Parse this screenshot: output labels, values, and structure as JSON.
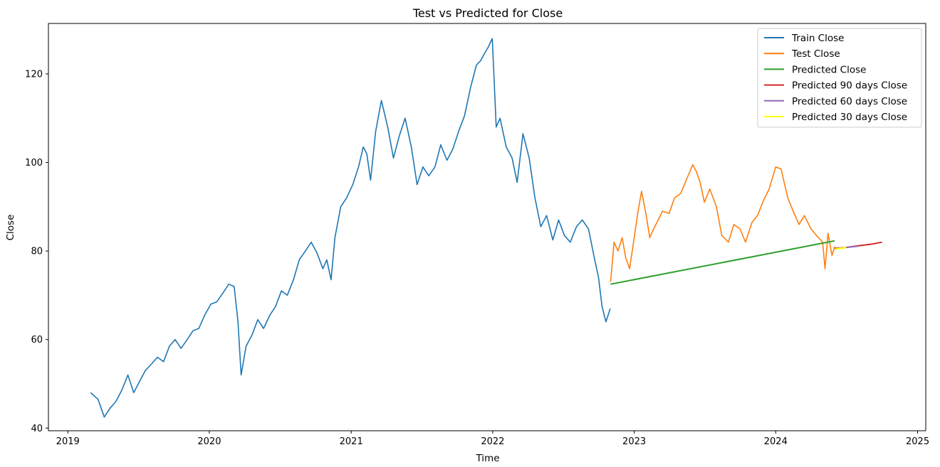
{
  "chart_data": {
    "type": "line",
    "title": "Test vs Predicted for Close",
    "xlabel": "Time",
    "ylabel": "Close",
    "xlim": [
      "2018-11-12",
      "2025-01-22"
    ],
    "ylim": [
      39.4,
      131.4
    ],
    "x_ticks": [
      "2019",
      "2020",
      "2021",
      "2022",
      "2023",
      "2024",
      "2025"
    ],
    "y_ticks": [
      40,
      60,
      80,
      100,
      120
    ],
    "grid": false,
    "legend_position": "top-right",
    "series": [
      {
        "name": "Train Close",
        "color": "#1f77b4",
        "x": [
          "2019-03-01",
          "2019-03-20",
          "2019-04-05",
          "2019-04-20",
          "2019-05-05",
          "2019-05-20",
          "2019-06-05",
          "2019-06-20",
          "2019-07-05",
          "2019-07-20",
          "2019-08-05",
          "2019-08-20",
          "2019-09-05",
          "2019-09-20",
          "2019-10-05",
          "2019-10-20",
          "2019-11-05",
          "2019-11-20",
          "2019-12-05",
          "2019-12-20",
          "2020-01-05",
          "2020-01-20",
          "2020-02-05",
          "2020-02-20",
          "2020-03-05",
          "2020-03-15",
          "2020-03-23",
          "2020-04-05",
          "2020-04-20",
          "2020-05-05",
          "2020-05-20",
          "2020-06-05",
          "2020-06-20",
          "2020-07-05",
          "2020-07-20",
          "2020-08-05",
          "2020-08-20",
          "2020-09-05",
          "2020-09-20",
          "2020-10-05",
          "2020-10-20",
          "2020-10-30",
          "2020-11-10",
          "2020-11-20",
          "2020-12-05",
          "2020-12-20",
          "2021-01-05",
          "2021-01-20",
          "2021-02-01",
          "2021-02-10",
          "2021-02-20",
          "2021-03-05",
          "2021-03-20",
          "2021-04-05",
          "2021-04-20",
          "2021-05-05",
          "2021-05-20",
          "2021-06-05",
          "2021-06-20",
          "2021-07-05",
          "2021-07-20",
          "2021-08-05",
          "2021-08-20",
          "2021-09-05",
          "2021-09-20",
          "2021-10-05",
          "2021-10-20",
          "2021-11-05",
          "2021-11-20",
          "2021-12-01",
          "2021-12-10",
          "2021-12-20",
          "2021-12-31",
          "2022-01-10",
          "2022-01-20",
          "2022-02-05",
          "2022-02-20",
          "2022-03-05",
          "2022-03-20",
          "2022-04-05",
          "2022-04-20",
          "2022-05-05",
          "2022-05-20",
          "2022-06-05",
          "2022-06-20",
          "2022-07-05",
          "2022-07-20",
          "2022-08-05",
          "2022-08-20",
          "2022-09-05",
          "2022-09-20",
          "2022-10-01",
          "2022-10-10",
          "2022-10-20",
          "2022-10-31"
        ],
        "values": [
          48.0,
          46.5,
          42.5,
          44.5,
          46.0,
          48.5,
          52.0,
          48.0,
          50.5,
          53.0,
          54.5,
          56.0,
          55.0,
          58.5,
          60.0,
          58.0,
          60.0,
          62.0,
          62.5,
          65.5,
          68.0,
          68.5,
          70.5,
          72.5,
          72.0,
          64.0,
          52.0,
          58.5,
          61.0,
          64.5,
          62.5,
          65.5,
          67.5,
          71.0,
          70.0,
          73.5,
          78.0,
          80.0,
          82.0,
          79.5,
          76.0,
          78.0,
          73.5,
          83.0,
          90.0,
          92.0,
          95.0,
          99.0,
          103.5,
          102.0,
          96.0,
          107.0,
          114.0,
          108.0,
          101.0,
          106.0,
          110.0,
          103.5,
          95.0,
          99.0,
          97.0,
          99.0,
          104.0,
          100.5,
          103.0,
          107.0,
          110.5,
          117.0,
          122.0,
          123.0,
          124.5,
          126.0,
          128.0,
          108.0,
          110.0,
          103.5,
          101.0,
          95.5,
          106.5,
          101.0,
          92.0,
          85.5,
          88.0,
          82.5,
          87.0,
          83.5,
          82.0,
          85.5,
          87.0,
          85.0,
          78.5,
          74.0,
          67.5,
          64.0,
          67.0
        ]
      },
      {
        "name": "Test Close",
        "color": "#ff7f0e",
        "x": [
          "2022-11-01",
          "2022-11-10",
          "2022-11-20",
          "2022-12-01",
          "2022-12-10",
          "2022-12-20",
          "2023-01-01",
          "2023-01-10",
          "2023-01-20",
          "2023-02-01",
          "2023-02-10",
          "2023-02-20",
          "2023-03-01",
          "2023-03-15",
          "2023-04-01",
          "2023-04-15",
          "2023-05-01",
          "2023-05-15",
          "2023-06-01",
          "2023-06-10",
          "2023-06-20",
          "2023-07-01",
          "2023-07-15",
          "2023-08-01",
          "2023-08-15",
          "2023-09-01",
          "2023-09-15",
          "2023-10-01",
          "2023-10-15",
          "2023-11-01",
          "2023-11-15",
          "2023-12-01",
          "2023-12-15",
          "2024-01-01",
          "2024-01-15",
          "2024-02-01",
          "2024-02-15",
          "2024-03-01",
          "2024-03-15",
          "2024-04-01",
          "2024-04-15",
          "2024-05-01",
          "2024-05-07",
          "2024-05-15",
          "2024-05-25",
          "2024-06-01"
        ],
        "values": [
          73.0,
          82.0,
          80.0,
          83.0,
          78.5,
          76.0,
          83.0,
          88.5,
          93.5,
          88.0,
          83.0,
          85.0,
          86.5,
          89.0,
          88.5,
          92.0,
          93.0,
          96.0,
          99.5,
          98.0,
          95.5,
          91.0,
          94.0,
          90.0,
          83.5,
          82.0,
          86.0,
          85.0,
          82.0,
          86.5,
          88.0,
          91.5,
          94.0,
          99.0,
          98.5,
          92.0,
          89.0,
          86.0,
          88.0,
          85.0,
          83.5,
          82.0,
          76.0,
          84.0,
          79.0,
          81.0
        ]
      },
      {
        "name": "Predicted Close",
        "color": "#2ca02c",
        "x": [
          "2022-11-01",
          "2024-06-01"
        ],
        "values": [
          72.5,
          82.3
        ]
      },
      {
        "name": "Predicted 90 days Close",
        "color": "#d62728",
        "x": [
          "2024-06-01",
          "2024-07-01",
          "2024-08-01",
          "2024-09-01",
          "2024-10-01"
        ],
        "values": [
          80.6,
          80.8,
          81.2,
          81.5,
          82.0
        ]
      },
      {
        "name": "Predicted 60 days Close",
        "color": "#9467bd",
        "x": [
          "2024-06-01",
          "2024-07-01",
          "2024-08-01"
        ],
        "values": [
          80.5,
          80.8,
          81.1
        ]
      },
      {
        "name": "Predicted 30 days Close",
        "color": "#ffff00",
        "x": [
          "2024-06-01",
          "2024-06-15",
          "2024-07-01"
        ],
        "values": [
          80.4,
          80.6,
          80.8
        ]
      }
    ]
  }
}
